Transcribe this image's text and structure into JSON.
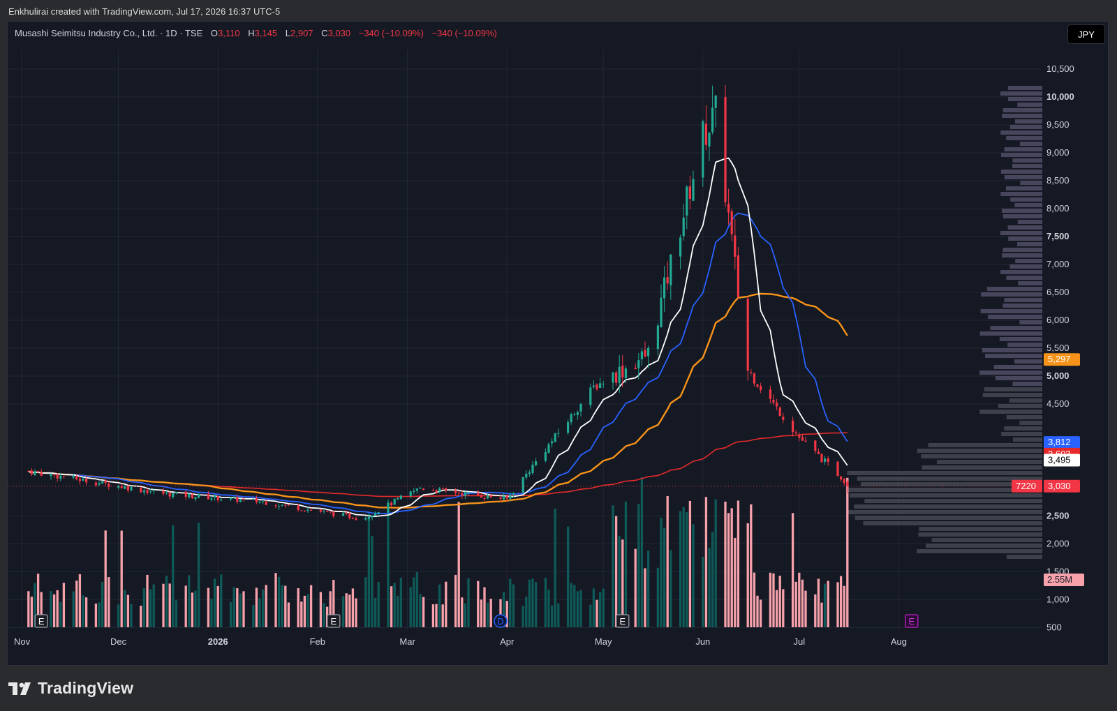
{
  "caption": "Enkhulirai created with TradingView.com, Jul 17, 2026 16:37 UTC-5",
  "symbol_line": "Musashi Seimitsu Industry Co., Ltd. · 1D · TSE",
  "ohlc": {
    "o_label": "O",
    "o_value": "3,110",
    "h_label": "H",
    "h_value": "3,145",
    "l_label": "L",
    "l_value": "2,907",
    "c_label": "C",
    "c_value": "3,030",
    "change1": "−340 (−10.09%)",
    "change2": "−340 (−10.09%)"
  },
  "currency": "JPY",
  "brand": "TradingView",
  "colors": {
    "bull": "#22ab94",
    "bear": "#f23645",
    "vol_bull": "#0e5a58",
    "vol_bear": "#f7a1ab",
    "ma_white": "#ffffff",
    "ma_blue": "#2962ff",
    "ma_orange": "#f7931a",
    "ma_red": "#e62a2a"
  },
  "chart_data": {
    "type": "candlestick",
    "x_labels": [
      {
        "label": "Nov",
        "date": "2025-11-01"
      },
      {
        "label": "Dec",
        "date": "2025-12-01"
      },
      {
        "label": "2026",
        "date": "2026-01-01"
      },
      {
        "label": "Feb",
        "date": "2026-02-01"
      },
      {
        "label": "Mar",
        "date": "2026-03-01"
      },
      {
        "label": "Apr",
        "date": "2026-04-01"
      },
      {
        "label": "May",
        "date": "2026-05-01"
      },
      {
        "label": "Jun",
        "date": "2026-06-01"
      },
      {
        "label": "Jul",
        "date": "2026-07-01"
      },
      {
        "label": "Aug",
        "date": "2026-08-01"
      }
    ],
    "y_ticks": [
      {
        "v": 10500,
        "label": "10,500"
      },
      {
        "v": 10000,
        "label": "10,000"
      },
      {
        "v": 9500,
        "label": "9,500"
      },
      {
        "v": 9000,
        "label": "9,000"
      },
      {
        "v": 8500,
        "label": "8,500"
      },
      {
        "v": 8000,
        "label": "8,000"
      },
      {
        "v": 7500,
        "label": "7,500"
      },
      {
        "v": 7000,
        "label": "7,000"
      },
      {
        "v": 6500,
        "label": "6,500"
      },
      {
        "v": 6000,
        "label": "6,000"
      },
      {
        "v": 5500,
        "label": "5,500"
      },
      {
        "v": 5000,
        "label": "5,000"
      },
      {
        "v": 4500,
        "label": "4,500"
      },
      {
        "v": 2500,
        "label": "2,500"
      },
      {
        "v": 2000,
        "label": "2,000"
      },
      {
        "v": 1500,
        "label": "1,500"
      },
      {
        "v": 1000,
        "label": "1,000"
      },
      {
        "v": 500,
        "label": "500"
      }
    ],
    "price_labels": [
      {
        "value": 5297,
        "text": "5,297",
        "color": "#f7931a"
      },
      {
        "value": 3812,
        "text": "3,812",
        "color": "#2962ff"
      },
      {
        "value": 3603,
        "text": "3,603",
        "color": "#e62a2a"
      },
      {
        "value": 3495,
        "text": "3,495",
        "color": "#ffffff"
      },
      {
        "value": 3030,
        "text": "3,030",
        "color": "#f23645"
      }
    ],
    "countdown_label": "7220",
    "volume_label": "2.55M",
    "events": [
      {
        "letter": "E",
        "date": "2025-11-07"
      },
      {
        "letter": "E",
        "date": "2026-02-06"
      },
      {
        "letter": "D",
        "date": "2026-03-30"
      },
      {
        "letter": "E",
        "date": "2026-05-07"
      },
      {
        "letter": "E",
        "date": "2026-08-05"
      }
    ],
    "key_prices": [
      {
        "date": "2025-11-03",
        "close": 3300
      },
      {
        "date": "2025-12-15",
        "close": 2900
      },
      {
        "date": "2026-01-15",
        "close": 2750
      },
      {
        "date": "2026-02-15",
        "close": 2450
      },
      {
        "date": "2026-03-05",
        "close": 3000
      },
      {
        "date": "2026-04-01",
        "close": 2800
      },
      {
        "date": "2026-04-28",
        "close": 4800
      },
      {
        "date": "2026-05-15",
        "close": 5400
      },
      {
        "date": "2026-06-01",
        "close": 9300
      },
      {
        "date": "2026-06-05",
        "close": 9700
      },
      {
        "date": "2026-06-15",
        "close": 5100
      },
      {
        "date": "2026-07-01",
        "close": 3900
      },
      {
        "date": "2026-07-17",
        "close": 3030
      }
    ]
  }
}
